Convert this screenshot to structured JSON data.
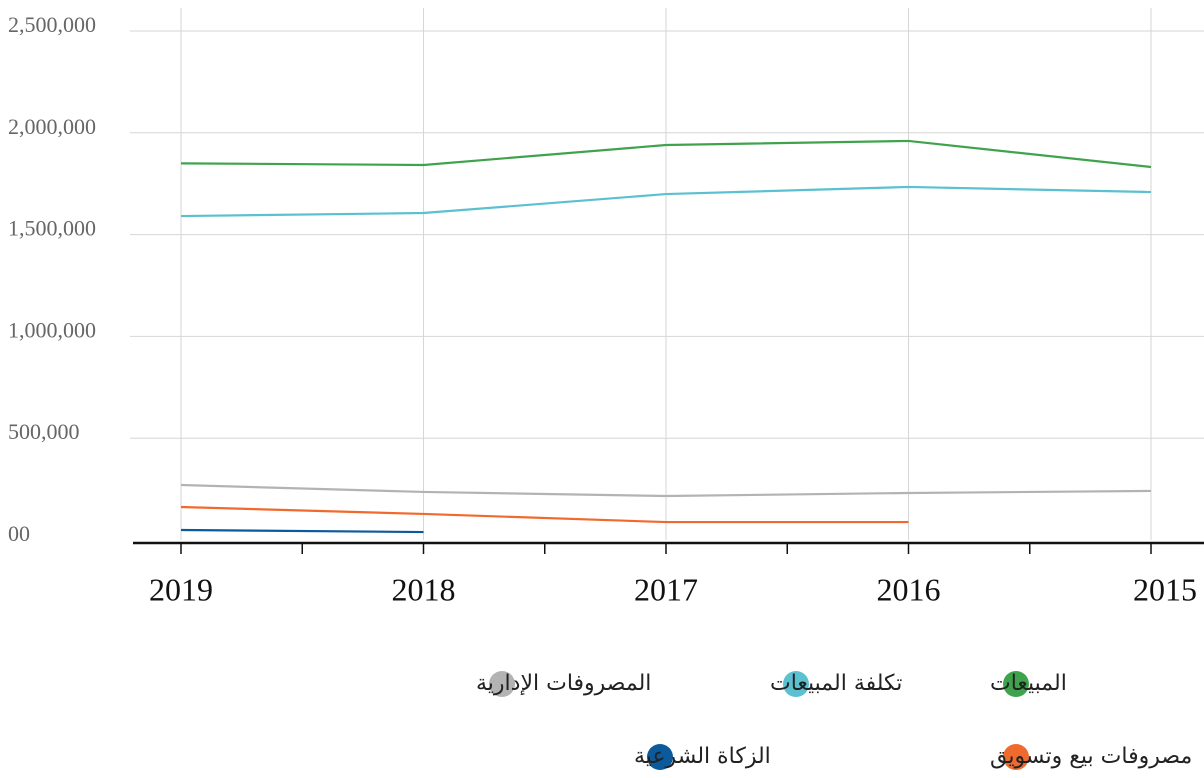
{
  "chart_data": {
    "type": "line",
    "categories": [
      "2019",
      "2018",
      "2017",
      "2016",
      "2015"
    ],
    "series": [
      {
        "name": "المبيعات",
        "color": "#3fa34d",
        "values": [
          1850000,
          1842000,
          1940000,
          1960000,
          1832000
        ]
      },
      {
        "name": "تكلفة المبيعات",
        "color": "#5bc0d0",
        "values": [
          1591000,
          1606000,
          1699000,
          1734000,
          1709000
        ]
      },
      {
        "name": "المصروفات الإدارية",
        "color": "#b3b3b3",
        "values": [
          270000,
          236000,
          216000,
          231000,
          241000
        ]
      },
      {
        "name": "مصروفات بيع وتسويق",
        "color": "#f06a2e",
        "values": [
          162000,
          128000,
          88000,
          88000,
          null
        ]
      },
      {
        "name": "الزكاة الشرعية",
        "color": "#0b5a9c",
        "values": [
          49000,
          39000,
          null,
          null,
          null
        ]
      }
    ],
    "ylim": [
      0,
      2500000
    ],
    "yticks": [
      {
        "value": 0,
        "label": "00"
      },
      {
        "value": 500000,
        "label": "500,000"
      },
      {
        "value": 1000000,
        "label": "1,000,000"
      },
      {
        "value": 1500000,
        "label": "1,500,000"
      },
      {
        "value": 2000000,
        "label": "2,000,000"
      },
      {
        "value": 2500000,
        "label": "2,500,000"
      }
    ],
    "grid": true
  }
}
